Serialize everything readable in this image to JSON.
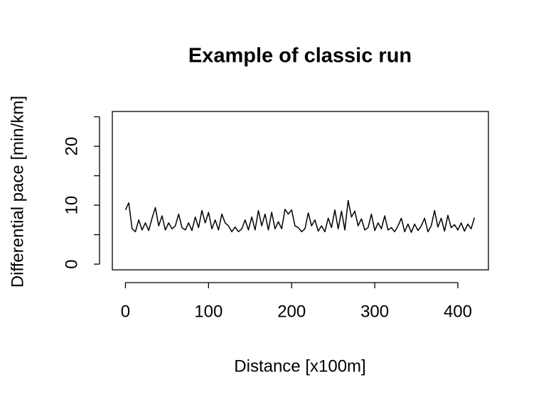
{
  "chart_data": {
    "type": "line",
    "title": "Example of classic run",
    "xlabel": "Distance [x100m]",
    "ylabel": "Differential pace [min/km]",
    "x": [
      0,
      4,
      8,
      12,
      16,
      20,
      24,
      28,
      32,
      36,
      40,
      44,
      48,
      52,
      56,
      60,
      64,
      68,
      72,
      76,
      80,
      84,
      88,
      92,
      96,
      100,
      104,
      108,
      112,
      116,
      120,
      124,
      128,
      132,
      136,
      140,
      144,
      148,
      152,
      156,
      160,
      164,
      168,
      172,
      176,
      180,
      184,
      188,
      192,
      196,
      200,
      204,
      208,
      212,
      216,
      220,
      224,
      228,
      232,
      236,
      240,
      244,
      248,
      252,
      256,
      260,
      264,
      268,
      272,
      276,
      280,
      284,
      288,
      292,
      296,
      300,
      304,
      308,
      312,
      316,
      320,
      324,
      328,
      332,
      336,
      340,
      344,
      348,
      352,
      356,
      360,
      364,
      368,
      372,
      376,
      380,
      384,
      388,
      392,
      396,
      400,
      404,
      408,
      412,
      416,
      420
    ],
    "values": [
      9.2,
      10.4,
      6,
      5.5,
      7.5,
      5.8,
      7,
      5.7,
      7.8,
      9.6,
      6.5,
      8.2,
      5.8,
      7,
      6,
      6.5,
      8.5,
      6.2,
      5.8,
      7,
      5.7,
      8,
      6.2,
      9.1,
      7,
      8.8,
      6,
      7.5,
      5.8,
      8.5,
      7,
      6.5,
      5.5,
      6.3,
      5.5,
      6,
      7.5,
      5.8,
      8,
      5.8,
      9.1,
      6.5,
      8.5,
      5.8,
      8.8,
      6,
      7.2,
      6,
      9.3,
      8.5,
      9.2,
      6.5,
      6.2,
      5.5,
      6,
      8.7,
      6.5,
      7.5,
      5.6,
      6.5,
      5.5,
      7.8,
      6.2,
      9.2,
      6,
      9,
      5.8,
      10.8,
      8,
      9,
      6.5,
      7.7,
      5.8,
      6.2,
      8.5,
      5.7,
      7,
      6,
      8.2,
      5.8,
      6.2,
      5.5,
      6.5,
      7.8,
      5.5,
      6.8,
      5.4,
      6.8,
      5.7,
      6.5,
      7.8,
      5.5,
      6.5,
      9.1,
      6.3,
      7.8,
      5.6,
      8.3,
      6.2,
      6.7,
      5.8,
      7,
      5.6,
      6.8,
      6,
      7.9
    ],
    "color": "#000000",
    "xlim": [
      -15.8,
      436.8
    ],
    "xticks": [
      0,
      100,
      200,
      300,
      400
    ],
    "ylim": [
      -0.96,
      25.9
    ],
    "yticks": [
      0,
      10,
      20
    ],
    "yminor": [
      5,
      15,
      25
    ]
  }
}
